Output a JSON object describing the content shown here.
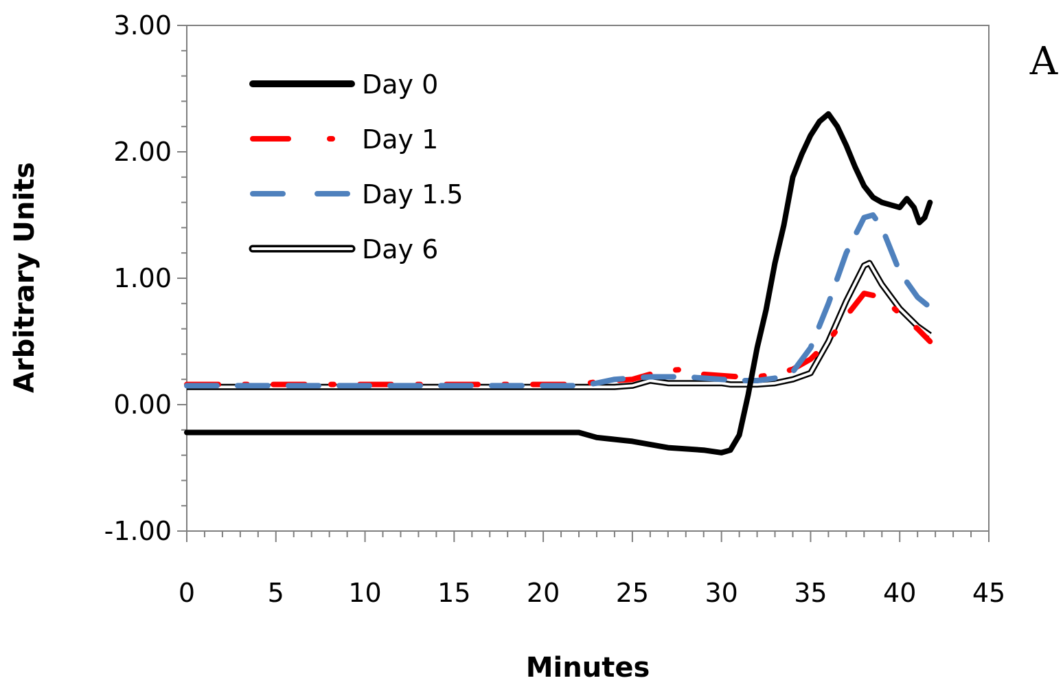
{
  "chart_data": {
    "type": "line",
    "title": "",
    "panel_label": "A",
    "xlabel": "Minutes",
    "ylabel": "Arbitrary Units",
    "xlim": [
      0,
      45
    ],
    "ylim": [
      -1,
      3
    ],
    "x_ticks": [
      0,
      5,
      10,
      15,
      20,
      25,
      30,
      35,
      40,
      45
    ],
    "x_tick_labels": [
      "0",
      "5",
      "10",
      "15",
      "20",
      "25",
      "30",
      "35",
      "40",
      "45"
    ],
    "y_ticks": [
      3,
      2,
      1,
      0,
      -1
    ],
    "y_tick_labels": [
      "3.00",
      "2.00",
      "1.00",
      "0.00",
      "-1.00"
    ],
    "grid": false,
    "legend_position": "top-left",
    "series": [
      {
        "name": "Day 0",
        "style": "solid-thick",
        "color": "#000000",
        "x": [
          0,
          22,
          23,
          25,
          27,
          29,
          30,
          30.5,
          31,
          31.5,
          32,
          32.5,
          33,
          33.5,
          34,
          34.5,
          35,
          35.5,
          36,
          36.5,
          37,
          37.5,
          38,
          38.5,
          39,
          39.5,
          40,
          40.4,
          40.8,
          41.1,
          41.4,
          41.7
        ],
        "values": [
          -0.22,
          -0.22,
          -0.26,
          -0.29,
          -0.34,
          -0.36,
          -0.38,
          -0.36,
          -0.24,
          0.08,
          0.45,
          0.75,
          1.12,
          1.42,
          1.8,
          1.98,
          2.13,
          2.24,
          2.3,
          2.2,
          2.05,
          1.88,
          1.73,
          1.64,
          1.6,
          1.58,
          1.56,
          1.63,
          1.56,
          1.44,
          1.48,
          1.6
        ]
      },
      {
        "name": "Day 1",
        "style": "dash-dot",
        "color": "#ff0000",
        "x": [
          0,
          22,
          23,
          24,
          25,
          26,
          27,
          28,
          29,
          30,
          31,
          32,
          33,
          34,
          35,
          36,
          37,
          38,
          39,
          40,
          41,
          41.7
        ],
        "values": [
          0.16,
          0.16,
          0.18,
          0.19,
          0.2,
          0.24,
          0.27,
          0.28,
          0.24,
          0.23,
          0.22,
          0.22,
          0.24,
          0.28,
          0.36,
          0.5,
          0.7,
          0.88,
          0.85,
          0.72,
          0.6,
          0.5
        ]
      },
      {
        "name": "Day 1.5",
        "style": "dashed",
        "color": "#4f81bd",
        "x": [
          0,
          22,
          23,
          24,
          25,
          26,
          27,
          28,
          29,
          30,
          31,
          32,
          33,
          34,
          35,
          36,
          37,
          38,
          38.5,
          39,
          40,
          41,
          41.7
        ],
        "values": [
          0.15,
          0.15,
          0.17,
          0.2,
          0.21,
          0.22,
          0.22,
          0.22,
          0.21,
          0.2,
          0.19,
          0.19,
          0.21,
          0.26,
          0.45,
          0.8,
          1.2,
          1.48,
          1.5,
          1.4,
          1.05,
          0.85,
          0.77
        ]
      },
      {
        "name": "Day 6",
        "style": "double",
        "color": "#000000",
        "x": [
          0,
          22,
          23,
          24,
          25,
          26,
          27,
          28,
          29,
          30,
          30.5,
          31,
          32,
          33,
          34,
          35,
          36,
          37,
          38,
          38.3,
          39,
          40,
          41,
          41.7
        ],
        "values": [
          0.14,
          0.14,
          0.14,
          0.14,
          0.15,
          0.19,
          0.17,
          0.17,
          0.17,
          0.17,
          0.16,
          0.16,
          0.16,
          0.17,
          0.2,
          0.25,
          0.5,
          0.82,
          1.1,
          1.12,
          0.95,
          0.76,
          0.62,
          0.55
        ]
      }
    ]
  }
}
